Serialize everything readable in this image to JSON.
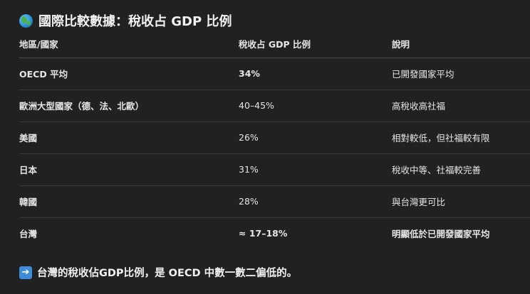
{
  "heading": {
    "icon": "globe-icon",
    "text": "國際比較數據：稅收占 GDP 比例"
  },
  "table": {
    "headers": [
      "地區/國家",
      "稅收占 GDP 比例",
      "說明"
    ],
    "rows": [
      {
        "region": "OECD 平均",
        "ratio": "34%",
        "note": "已開發國家平均"
      },
      {
        "region": "歐洲大型國家（德、法、北歐）",
        "ratio": "40–45%",
        "note": "高稅收高社福"
      },
      {
        "region": "美國",
        "ratio": "26%",
        "note": "相對較低，但社福較有限"
      },
      {
        "region": "日本",
        "ratio": "31%",
        "note": "稅收中等、社福較完善"
      },
      {
        "region": "韓國",
        "ratio": "28%",
        "note": "與台灣更可比"
      },
      {
        "region": "台灣",
        "ratio": "≈ 17–18%",
        "note": "明顯低於已開發國家平均"
      }
    ]
  },
  "conclusion": {
    "icon": "right-arrow-icon",
    "text": "台灣的稅收佔GDP比例，是 OECD 中數一數二偏低的。"
  },
  "colors": {
    "background": "#212121",
    "text": "#ececec",
    "arrow_box": "#3d8bd9"
  }
}
